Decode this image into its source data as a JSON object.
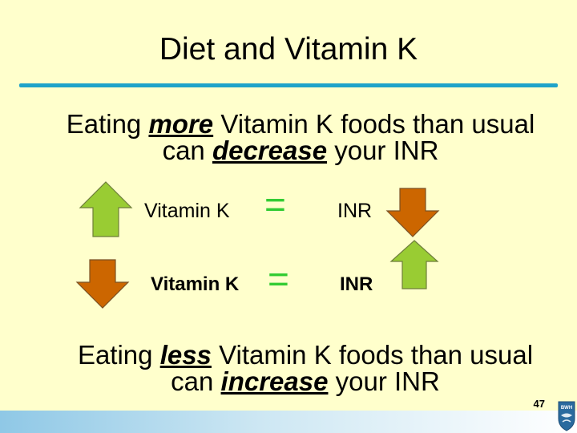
{
  "title": "Diet and Vitamin K",
  "para1": {
    "line1_pre": "Eating ",
    "line1_emph": "more",
    "line1_post": " Vitamin K foods than usual",
    "line2_pre": "can ",
    "line2_emph": "decrease",
    "line2_post": " your INR"
  },
  "row1": {
    "left_label": "Vitamin K",
    "equals": "=",
    "right_label": "INR"
  },
  "row2": {
    "left_label": "Vitamin K",
    "equals": "=",
    "right_label": "INR"
  },
  "para2": {
    "line1_pre": "Eating ",
    "line1_emph": "less",
    "line1_post": " Vitamin K foods than usual",
    "line2_pre": "can ",
    "line2_emph": "increase",
    "line2_post": " your INR"
  },
  "page_number": "47",
  "logo_text": "BWH",
  "colors": {
    "background": "#FFFFCC",
    "rule": "#1FA3C9",
    "up_arrow": "#99CC33",
    "down_arrow": "#CC6600",
    "equals": "#33CC33"
  },
  "icons": {
    "up": "arrow-up-icon",
    "down": "arrow-down-icon",
    "logo": "bwh-shield-logo"
  }
}
